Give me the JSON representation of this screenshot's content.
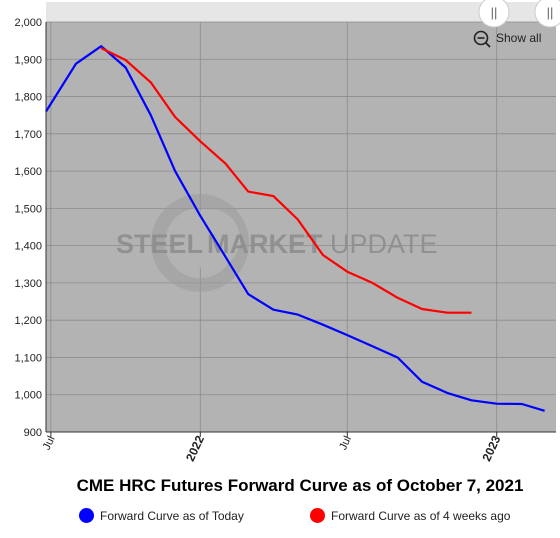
{
  "chart_data": {
    "type": "line",
    "title": "CME HRC Futures Forward Curve as of October 7, 2021",
    "xlabel": "",
    "ylabel": "",
    "ylim": [
      900,
      2000
    ],
    "yticks": [
      900,
      1000,
      1100,
      1200,
      1300,
      1400,
      1500,
      1600,
      1700,
      1800,
      1900,
      2000
    ],
    "ytick_labels": [
      "900",
      "1,000",
      "1,100",
      "1,200",
      "1,300",
      "1,400",
      "1,500",
      "1,600",
      "1,700",
      "1,800",
      "1,900",
      "2,000"
    ],
    "x_axis": {
      "type": "date",
      "range": [
        "2021-06-25",
        "2023-03-15"
      ],
      "ticks": [
        {
          "date": "2021-07-01",
          "label": "Jul",
          "bold": false
        },
        {
          "date": "2022-01-01",
          "label": "2022",
          "bold": true
        },
        {
          "date": "2022-07-01",
          "label": "Jul",
          "bold": false
        },
        {
          "date": "2023-01-01",
          "label": "2023",
          "bold": true
        }
      ]
    },
    "grid": true,
    "legend_position": "bottom",
    "series": [
      {
        "name": "Forward Curve as of Today",
        "color": "#0000ff",
        "points": [
          [
            "2021-06-25",
            1760
          ],
          [
            "2021-08-01",
            1888
          ],
          [
            "2021-09-01",
            1935
          ],
          [
            "2021-10-01",
            1878
          ],
          [
            "2021-11-01",
            1750
          ],
          [
            "2021-12-01",
            1600
          ],
          [
            "2022-01-01",
            1480
          ],
          [
            "2022-02-01",
            1370
          ],
          [
            "2022-03-01",
            1270
          ],
          [
            "2022-04-01",
            1228
          ],
          [
            "2022-05-01",
            1215
          ],
          [
            "2022-06-01",
            1188
          ],
          [
            "2022-07-01",
            1160
          ],
          [
            "2022-08-01",
            1130
          ],
          [
            "2022-09-01",
            1100
          ],
          [
            "2022-10-01",
            1035
          ],
          [
            "2022-11-01",
            1005
          ],
          [
            "2022-12-01",
            985
          ],
          [
            "2023-01-01",
            976
          ],
          [
            "2023-02-01",
            975
          ],
          [
            "2023-03-01",
            957
          ]
        ]
      },
      {
        "name": "Forward Curve as of 4 weeks ago",
        "color": "#ff0000",
        "points": [
          [
            "2021-09-01",
            1930
          ],
          [
            "2021-10-01",
            1898
          ],
          [
            "2021-11-01",
            1838
          ],
          [
            "2021-12-01",
            1745
          ],
          [
            "2022-01-01",
            1680
          ],
          [
            "2022-02-01",
            1620
          ],
          [
            "2022-03-01",
            1545
          ],
          [
            "2022-04-01",
            1533
          ],
          [
            "2022-05-01",
            1470
          ],
          [
            "2022-06-01",
            1375
          ],
          [
            "2022-07-01",
            1330
          ],
          [
            "2022-08-01",
            1300
          ],
          [
            "2022-09-01",
            1260
          ],
          [
            "2022-10-01",
            1230
          ],
          [
            "2022-11-01",
            1220
          ],
          [
            "2022-12-01",
            1220
          ]
        ]
      }
    ],
    "watermark": {
      "part1": "STEEL",
      "part2": "MARKET",
      "part3": " UPDATE"
    },
    "colors": {
      "plot_bg": "#b3b3b3",
      "navigator_bg": "#e6e6e6",
      "grid": "#8c8c8c"
    }
  },
  "controls": {
    "show_all_label": "Show all",
    "navigator_handle_left_glyph": "||",
    "navigator_handle_right_glyph": "||"
  },
  "legend": {
    "items": [
      {
        "label": "Forward Curve as of Today",
        "color": "#0000ff"
      },
      {
        "label": "Forward Curve as of 4 weeks ago",
        "color": "#ff0000"
      }
    ]
  }
}
